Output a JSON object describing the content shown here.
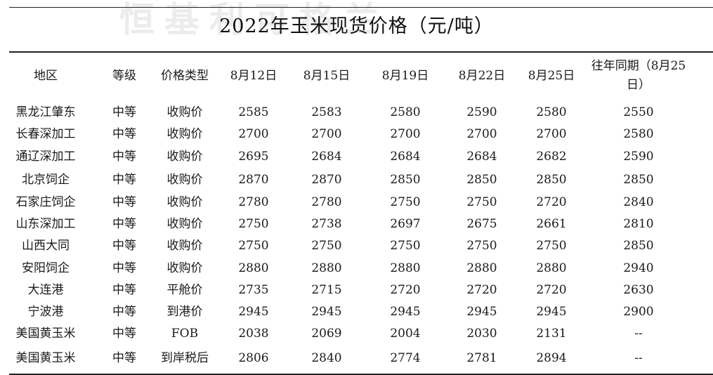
{
  "watermark": "恒基利可格兰",
  "title": "2022年玉米现货价格（元/吨）",
  "columns": [
    "地区",
    "等级",
    "价格类型",
    "8月12日",
    "8月15日",
    "8月19日",
    "8月22日",
    "8月25日",
    "往年同期（8月25日）"
  ],
  "rows": [
    [
      "黑龙江肇东",
      "中等",
      "收购价",
      "2585",
      "2583",
      "2580",
      "2590",
      "2580",
      "2550"
    ],
    [
      "长春深加工",
      "中等",
      "收购价",
      "2700",
      "2700",
      "2700",
      "2700",
      "2700",
      "2580"
    ],
    [
      "通辽深加工",
      "中等",
      "收购价",
      "2695",
      "2684",
      "2684",
      "2684",
      "2682",
      "2590"
    ],
    [
      "北京饲企",
      "中等",
      "收购价",
      "2870",
      "2870",
      "2850",
      "2850",
      "2850",
      "2850"
    ],
    [
      "石家庄饲企",
      "中等",
      "收购价",
      "2780",
      "2780",
      "2750",
      "2750",
      "2720",
      "2840"
    ],
    [
      "山东深加工",
      "中等",
      "收购价",
      "2750",
      "2738",
      "2697",
      "2675",
      "2661",
      "2810"
    ],
    [
      "山西大同",
      "中等",
      "收购价",
      "2750",
      "2750",
      "2750",
      "2750",
      "2750",
      "2850"
    ],
    [
      "安阳饲企",
      "中等",
      "收购价",
      "2880",
      "2880",
      "2880",
      "2880",
      "2880",
      "2940"
    ],
    [
      "大连港",
      "中等",
      "平舱价",
      "2735",
      "2715",
      "2720",
      "2720",
      "2720",
      "2630"
    ],
    [
      "宁波港",
      "中等",
      "到港价",
      "2945",
      "2945",
      "2945",
      "2945",
      "2945",
      "2900"
    ],
    [
      "美国黄玉米",
      "中等",
      "FOB",
      "2038",
      "2069",
      "2004",
      "2030",
      "2131",
      "--"
    ],
    [
      "美国黄玉米",
      "中等",
      "到岸税后",
      "2806",
      "2840",
      "2774",
      "2781",
      "2894",
      "--"
    ]
  ]
}
